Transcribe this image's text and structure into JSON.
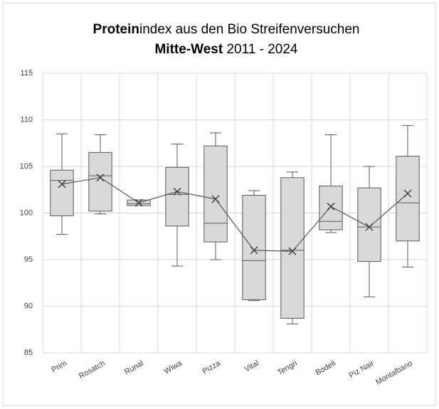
{
  "chart_data": {
    "type": "box",
    "title": [
      [
        "Protein",
        "index aus den Bio Streifenversuchen"
      ],
      [
        "Mitte-West",
        " 2011 - 2024"
      ]
    ],
    "categories": [
      "Prim",
      "Rosatch",
      "Runal",
      "Wiwa",
      "Pizza",
      "Vital",
      "Tengri",
      "Bodeli",
      "Piz Nair",
      "Montalbano"
    ],
    "low": [
      97.7,
      99.9,
      100.8,
      94.3,
      95.0,
      90.6,
      88.1,
      97.9,
      91.0,
      94.2
    ],
    "q1": [
      99.7,
      100.2,
      100.8,
      98.6,
      96.9,
      90.7,
      88.7,
      98.2,
      94.8,
      97.0
    ],
    "median": [
      103.5,
      104.0,
      101.0,
      102.0,
      98.9,
      94.9,
      96.0,
      99.1,
      98.5,
      101.1
    ],
    "q3": [
      104.6,
      106.5,
      101.4,
      104.9,
      107.2,
      101.9,
      103.8,
      102.9,
      102.7,
      106.1
    ],
    "high": [
      108.5,
      108.4,
      101.4,
      107.4,
      108.6,
      102.4,
      104.4,
      108.4,
      105.0,
      109.4
    ],
    "mean": [
      103.1,
      103.8,
      101.1,
      102.3,
      101.5,
      96.0,
      95.9,
      100.7,
      98.5,
      102.1
    ],
    "color": "#d9d9d9",
    "ylim": [
      85,
      115
    ],
    "yticks": [
      85,
      90,
      95,
      100,
      105,
      110,
      115
    ],
    "grid": true
  }
}
